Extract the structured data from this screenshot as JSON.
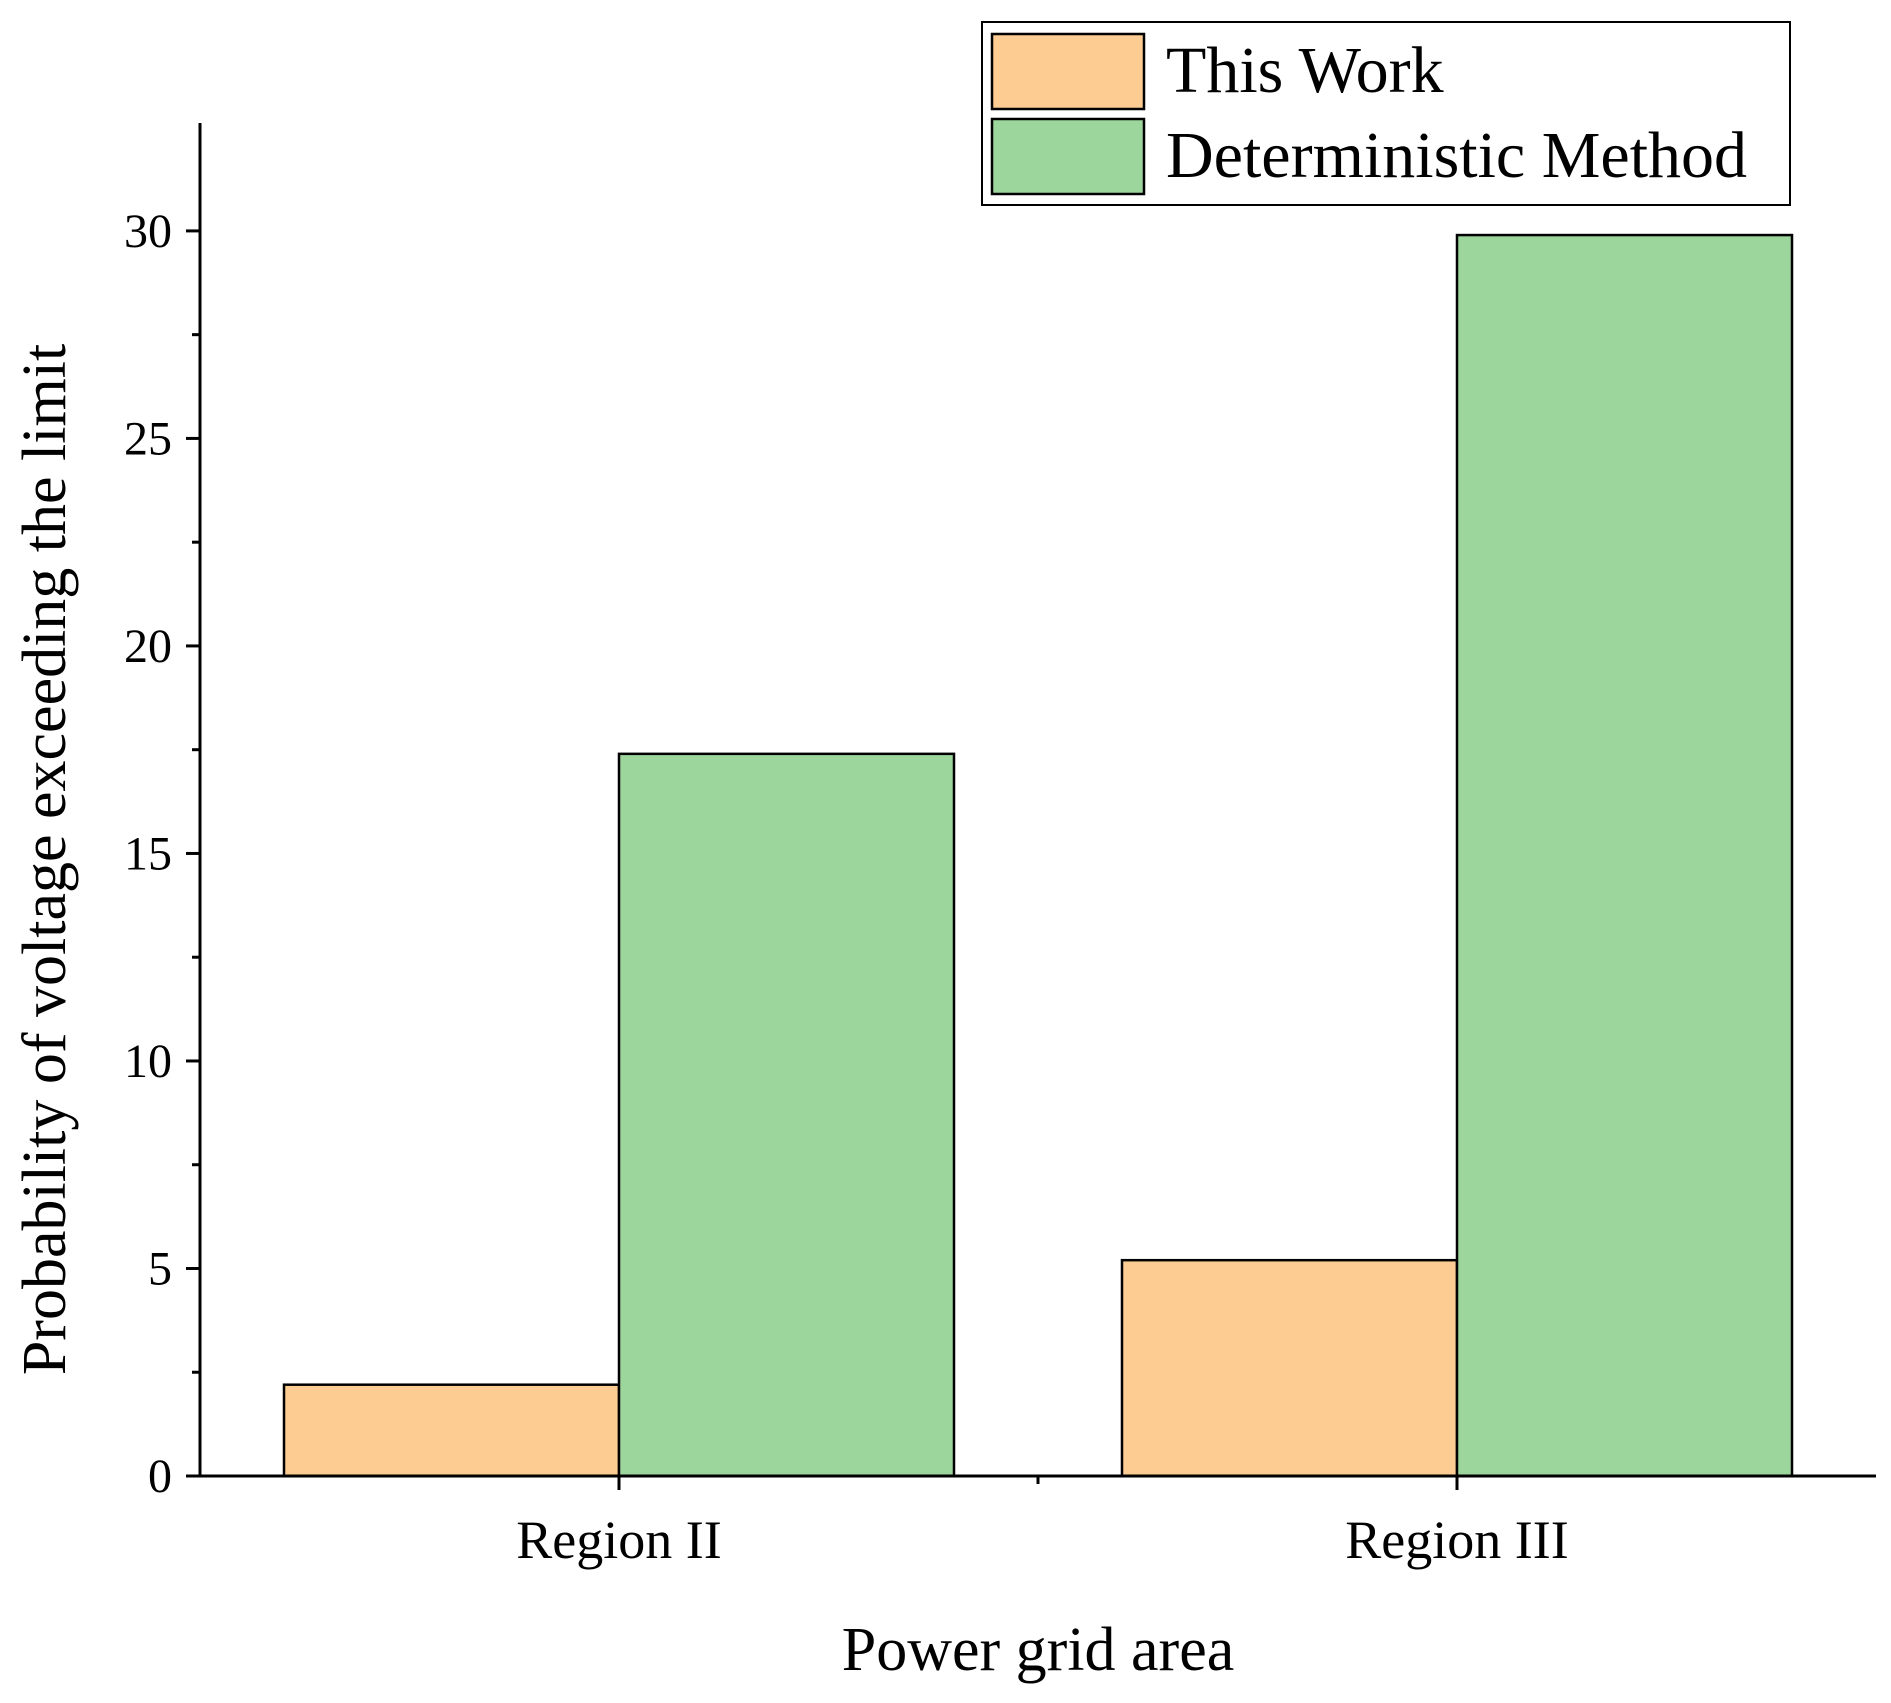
{
  "chart_data": {
    "type": "bar",
    "categories": [
      "Region II",
      "Region III"
    ],
    "series": [
      {
        "name": "This Work",
        "values": [
          2.2,
          5.2
        ],
        "color": "#FDCC92"
      },
      {
        "name": "Deterministic Method",
        "values": [
          17.4,
          29.9
        ],
        "color": "#9DD69C"
      }
    ],
    "xlabel": "Power grid area",
    "ylabel": "Probability of voltage exceeding the limit",
    "ylim": [
      0,
      32.6
    ],
    "yticks": [
      0,
      5,
      10,
      15,
      20,
      25,
      30
    ],
    "grid": false,
    "legend_position": "top-right"
  }
}
